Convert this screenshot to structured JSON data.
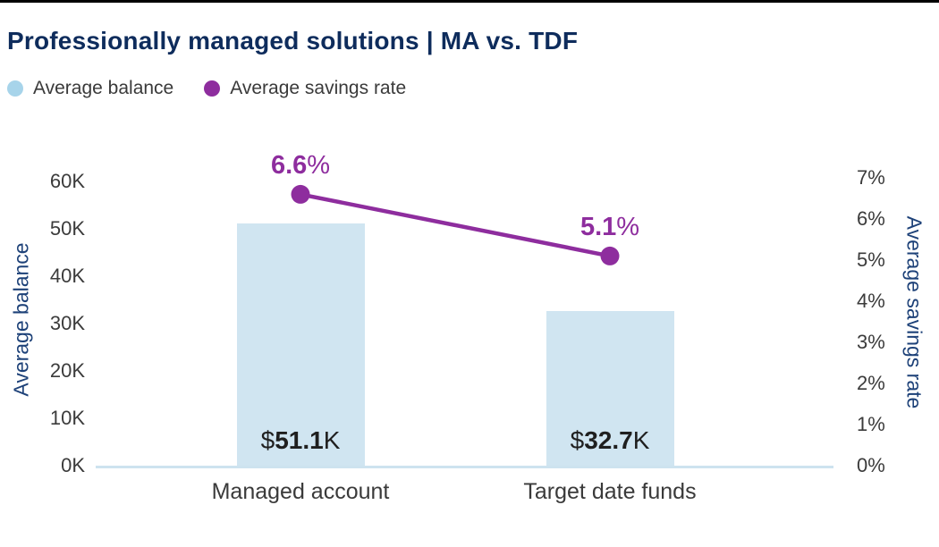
{
  "header": {
    "title": "Professionally managed solutions | MA vs. TDF"
  },
  "legend": {
    "items": [
      {
        "label": "Average balance",
        "color": "#a7d4ea",
        "shape": "circle"
      },
      {
        "label": "Average savings rate",
        "color": "#8e2d9e",
        "shape": "circle"
      }
    ]
  },
  "chart_data": {
    "type": "combo-bar-line",
    "title": "Professionally managed solutions | MA vs. TDF",
    "categories": [
      "Managed account",
      "Target date funds"
    ],
    "series": [
      {
        "name": "Average balance",
        "type": "bar",
        "axis": "left",
        "unit": "K",
        "color": "#d0e5f1",
        "values": [
          51.1,
          32.7
        ],
        "data_labels": [
          {
            "prefix": "$",
            "value": "51.1",
            "suffix": "K"
          },
          {
            "prefix": "$",
            "value": "32.7",
            "suffix": "K"
          }
        ]
      },
      {
        "name": "Average savings rate",
        "type": "line",
        "axis": "right",
        "unit": "%",
        "color": "#8e2d9e",
        "values": [
          6.6,
          5.1
        ],
        "data_labels": [
          {
            "value": "6.6",
            "suffix": "%"
          },
          {
            "value": "5.1",
            "suffix": "%"
          }
        ]
      }
    ],
    "left_axis": {
      "title": "Average balance",
      "min": 0,
      "max": 60,
      "tick_step": 10,
      "tick_labels": [
        "0K",
        "10K",
        "20K",
        "30K",
        "40K",
        "50K",
        "60K"
      ]
    },
    "right_axis": {
      "title": "Average savings rate",
      "min": 0,
      "max": 7,
      "tick_step": 1,
      "tick_labels": [
        "0%",
        "1%",
        "2%",
        "3%",
        "4%",
        "5%",
        "6%",
        "7%"
      ]
    },
    "grid": false,
    "legend_position": "top-left",
    "baseline_color": "#cde3ef"
  }
}
